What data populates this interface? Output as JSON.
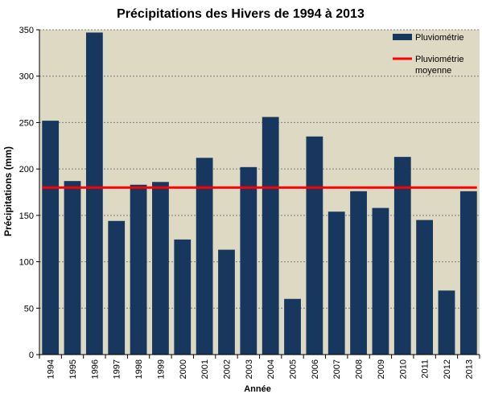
{
  "chart_data": {
    "type": "bar",
    "title": "Précipitations des Hivers de 1994 à 2013",
    "xlabel": "Année",
    "ylabel": "Précipitations (mm)",
    "ylim": [
      0,
      350
    ],
    "yticks": [
      0,
      50,
      100,
      150,
      200,
      250,
      300,
      350
    ],
    "grid": true,
    "legend_position": "top-right",
    "categories": [
      "1994",
      "1995",
      "1996",
      "1997",
      "1998",
      "1999",
      "2000",
      "2001",
      "2002",
      "2003",
      "2004",
      "2005",
      "2006",
      "2007",
      "2008",
      "2009",
      "2010",
      "2011",
      "2012",
      "2013"
    ],
    "series": [
      {
        "name": "Pluviométrie",
        "kind": "bar",
        "color": "#17375e",
        "values": [
          252,
          187,
          347,
          144,
          183,
          186,
          124,
          212,
          113,
          202,
          256,
          60,
          235,
          154,
          176,
          158,
          213,
          145,
          69,
          176
        ]
      },
      {
        "name": "Pluviométrie moyenne",
        "kind": "line",
        "color": "#ff0000",
        "value": 180
      }
    ],
    "plot_background": "#ddd9c3"
  }
}
